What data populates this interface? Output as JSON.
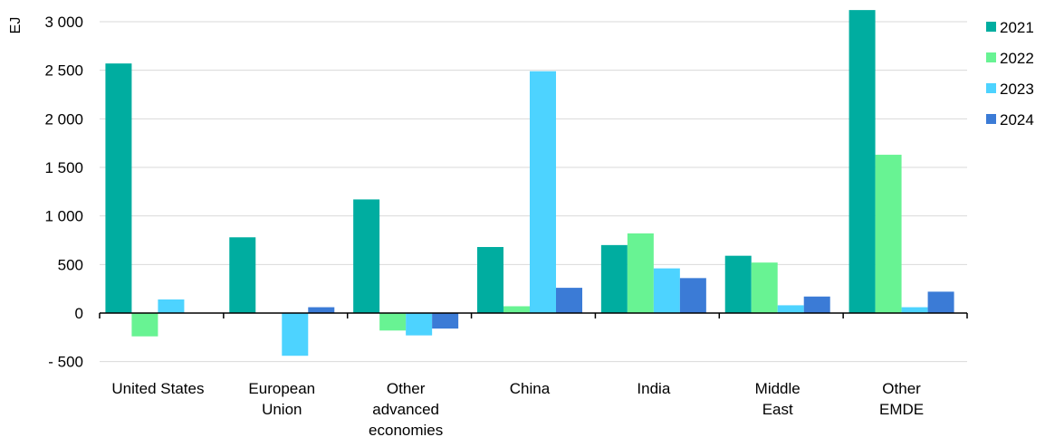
{
  "chart_data": {
    "type": "bar",
    "ylabel": "EJ",
    "categories": [
      [
        "United States"
      ],
      [
        "European",
        "Union"
      ],
      [
        "Other",
        "advanced",
        "economies"
      ],
      [
        "China"
      ],
      [
        "India"
      ],
      [
        "Middle",
        "East"
      ],
      [
        "Other",
        "EMDE"
      ]
    ],
    "series": [
      {
        "name": "2021",
        "color": "#00ada0",
        "values": [
          2570,
          780,
          1170,
          680,
          700,
          590,
          3120
        ]
      },
      {
        "name": "2022",
        "color": "#68f393",
        "values": [
          -240,
          0,
          -180,
          70,
          820,
          520,
          1630
        ]
      },
      {
        "name": "2023",
        "color": "#4dd3ff",
        "values": [
          140,
          -440,
          -230,
          2490,
          460,
          80,
          60
        ]
      },
      {
        "name": "2024",
        "color": "#3b7bd6",
        "values": [
          0,
          60,
          -160,
          260,
          360,
          170,
          220
        ]
      }
    ],
    "ylim": [
      -500,
      3000
    ],
    "yticks": [
      -500,
      0,
      500,
      1000,
      1500,
      2000,
      2500,
      3000
    ],
    "ytick_labels": [
      "- 500",
      "0",
      "500",
      "1 000",
      "1 500",
      "2 000",
      "2 500",
      "3 000"
    ],
    "grid": true,
    "legend_position": "right"
  }
}
